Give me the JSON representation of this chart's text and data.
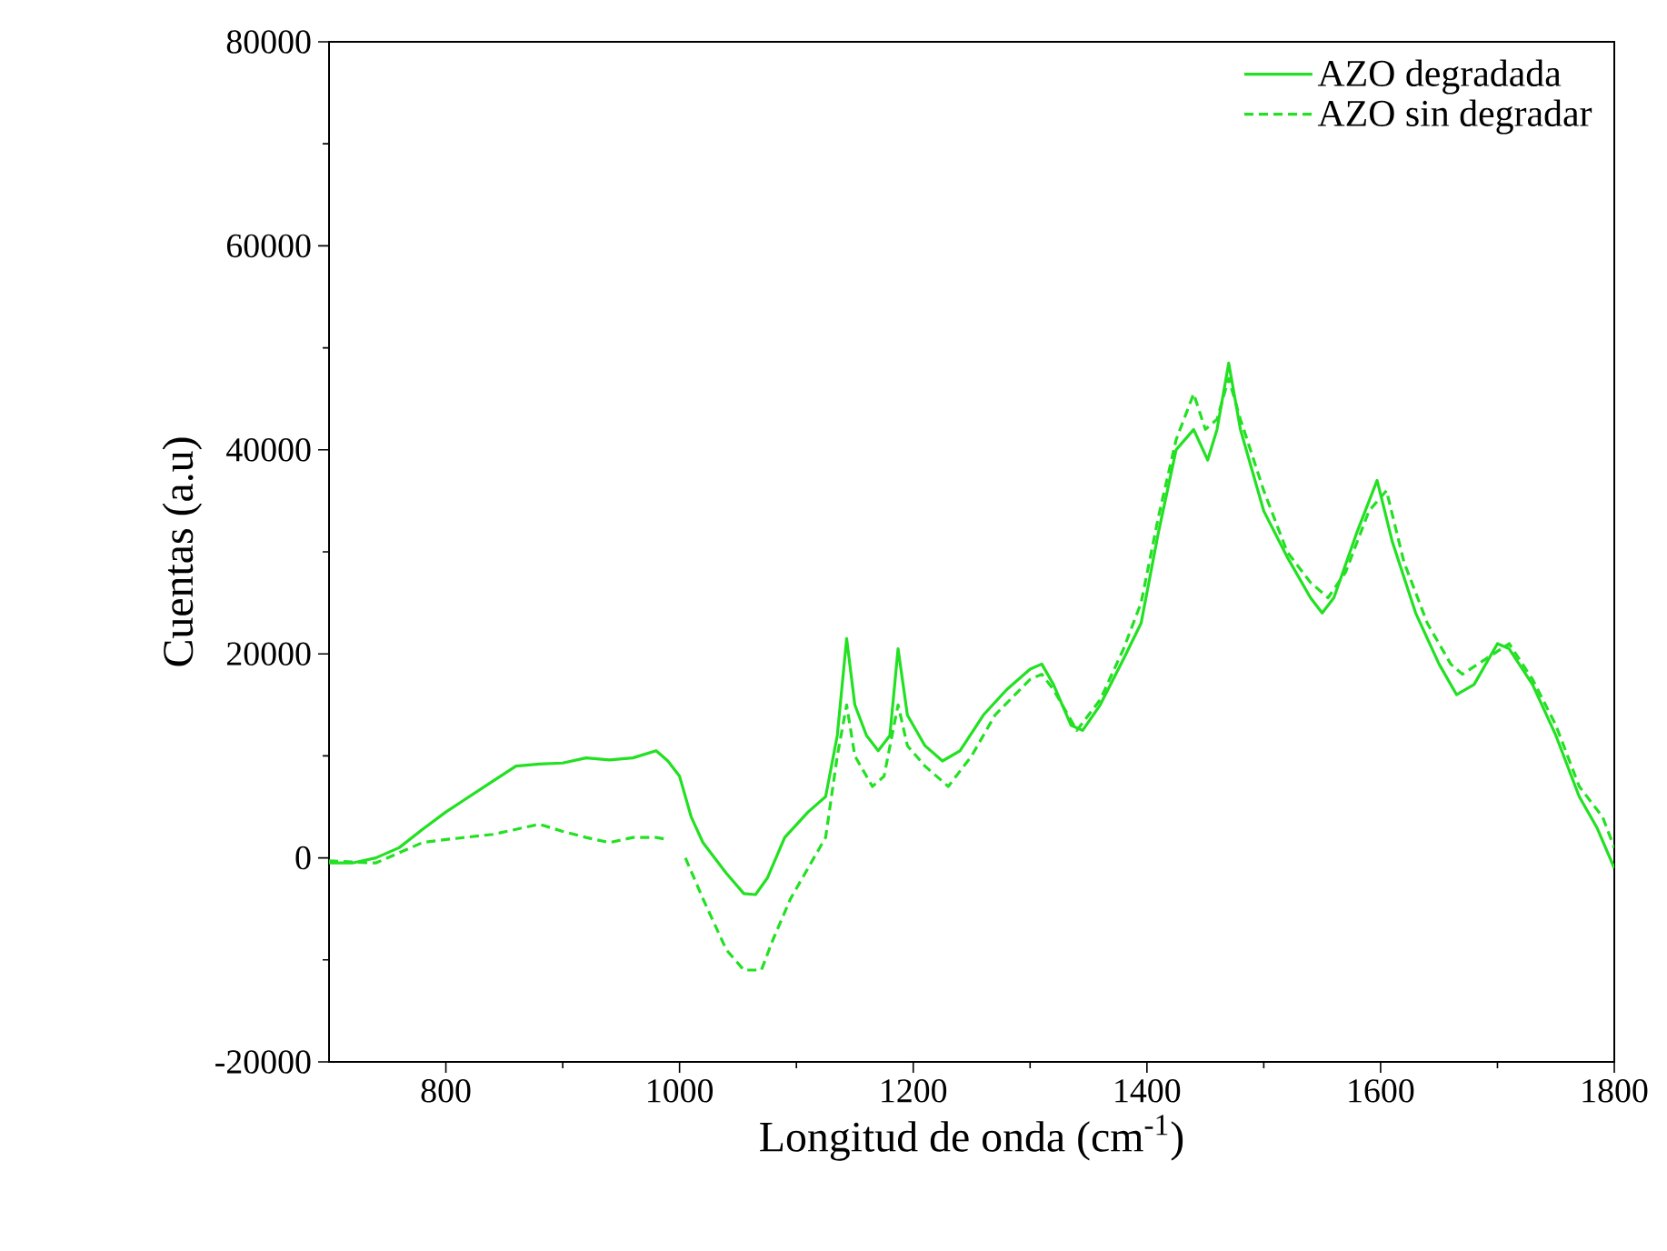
{
  "chart_data": {
    "type": "line",
    "xlabel": "Longitud de onda (cm$^{-1}$)",
    "ylabel": "Cuentas (a.u)",
    "xlim": [
      700,
      1800
    ],
    "ylim": [
      -20000,
      80000
    ],
    "xticks": [
      800,
      1000,
      1200,
      1400,
      1600,
      1800
    ],
    "yticks": [
      -20000,
      0,
      20000,
      40000,
      60000,
      80000
    ],
    "grid": false,
    "legend": "top right",
    "marker": "none",
    "series": [
      {
        "name": "AZO degradada",
        "color": "#22e022",
        "line_style": "solid",
        "x": [
          700,
          720,
          740,
          760,
          780,
          800,
          820,
          840,
          860,
          880,
          900,
          920,
          940,
          960,
          980,
          990,
          1000,
          1010,
          1020,
          1040,
          1055,
          1065,
          1075,
          1090,
          1110,
          1125,
          1135,
          1143,
          1150,
          1160,
          1170,
          1180,
          1187,
          1195,
          1210,
          1225,
          1240,
          1260,
          1280,
          1300,
          1310,
          1320,
          1335,
          1345,
          1360,
          1380,
          1395,
          1410,
          1425,
          1440,
          1452,
          1460,
          1470,
          1480,
          1500,
          1520,
          1540,
          1550,
          1560,
          1580,
          1597,
          1610,
          1630,
          1650,
          1665,
          1680,
          1700,
          1710,
          1730,
          1750,
          1770,
          1785,
          1800
        ],
        "values": [
          -500,
          -500,
          0,
          1000,
          2800,
          4500,
          6000,
          7500,
          9000,
          9200,
          9300,
          9800,
          9600,
          9800,
          10500,
          9500,
          8000,
          4000,
          1500,
          -1500,
          -3500,
          -3600,
          -2000,
          2000,
          4500,
          6000,
          12000,
          21500,
          15000,
          12000,
          10500,
          12000,
          20500,
          14000,
          11000,
          9500,
          10500,
          14000,
          16500,
          18500,
          19000,
          17000,
          13000,
          12500,
          15000,
          19500,
          23000,
          32000,
          40000,
          42000,
          39000,
          42000,
          48500,
          42000,
          34000,
          29500,
          25500,
          24000,
          25500,
          32000,
          37000,
          31000,
          24000,
          19000,
          16000,
          17000,
          21000,
          20500,
          17000,
          12000,
          6000,
          3000,
          -1000
        ]
      },
      {
        "name": "AZO sin degradar",
        "color": "#22e022",
        "line_style": "dashed",
        "x": [
          700,
          740,
          760,
          780,
          800,
          840,
          880,
          900,
          920,
          940,
          960,
          980,
          990,
          997,
          1005,
          1020,
          1040,
          1055,
          1070,
          1080,
          1095,
          1110,
          1125,
          1135,
          1143,
          1150,
          1165,
          1175,
          1187,
          1195,
          1210,
          1230,
          1250,
          1270,
          1300,
          1310,
          1320,
          1340,
          1360,
          1380,
          1395,
          1410,
          1425,
          1440,
          1450,
          1460,
          1470,
          1480,
          1500,
          1520,
          1540,
          1555,
          1570,
          1590,
          1605,
          1620,
          1640,
          1660,
          1670,
          1690,
          1710,
          1730,
          1750,
          1770,
          1790,
          1800
        ],
        "values": [
          -300,
          -500,
          500,
          1500,
          1800,
          2300,
          3300,
          2600,
          2000,
          1500,
          2000,
          2000,
          1800,
          null,
          0,
          -4000,
          -9000,
          -11000,
          -11000,
          -8000,
          -4000,
          -1000,
          2000,
          10000,
          15000,
          10000,
          7000,
          8000,
          15000,
          11000,
          9000,
          7000,
          10000,
          14000,
          17500,
          18000,
          16500,
          12500,
          15500,
          20500,
          25000,
          33500,
          41000,
          45500,
          42000,
          43000,
          47000,
          43000,
          36000,
          30000,
          27000,
          25500,
          28000,
          34000,
          36000,
          29000,
          23000,
          19000,
          18000,
          19500,
          21000,
          17500,
          13000,
          7000,
          4000,
          1000
        ]
      }
    ]
  }
}
